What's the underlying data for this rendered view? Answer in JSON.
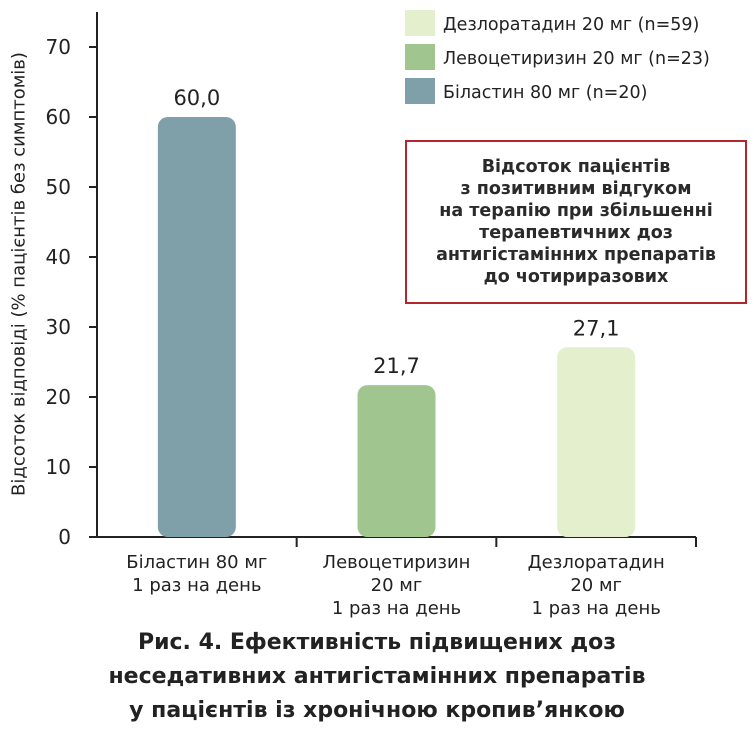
{
  "chart_data": {
    "type": "bar",
    "ylabel": "Відсоток відповіді (% пацієнтів без симптомів)",
    "ylim": [
      0,
      75
    ],
    "yticks": [
      0,
      10,
      20,
      30,
      40,
      50,
      60,
      70
    ],
    "categories": [
      [
        "Біластин 80 мг",
        "1 раз на день"
      ],
      [
        "Левоцетиризин",
        "20 мг",
        "1 раз на день"
      ],
      [
        "Дезлоратадин",
        "20 мг",
        "1 раз на день"
      ]
    ],
    "values": [
      60.0,
      21.7,
      27.1
    ],
    "value_labels": [
      "60,0",
      "21,7",
      "27,1"
    ],
    "colors": [
      "#7fa0a8",
      "#a1c58f",
      "#e4efcd"
    ],
    "legend": {
      "placement": "top-right",
      "items": [
        {
          "label": "Дезлоратадин 20 мг (n=59)",
          "color": "#e4efcd"
        },
        {
          "label": "Левоцетиризин 20 мг (n=23)",
          "color": "#a1c58f"
        },
        {
          "label": "Біластин 80 мг (n=20)",
          "color": "#7fa0a8"
        }
      ]
    },
    "grid": false
  },
  "annotation": "Відсоток пацієнтів\nз позитивним відгуком\nна терапію при збільшенні\nтерапевтичних доз\nантигістамінних препаратів\nдо чотириразових",
  "caption": "Рис. 4. Ефективність підвищених доз\nнеседативних антигістамінних препаратів\nу пацієнтів із хронічною кропив’янкою"
}
